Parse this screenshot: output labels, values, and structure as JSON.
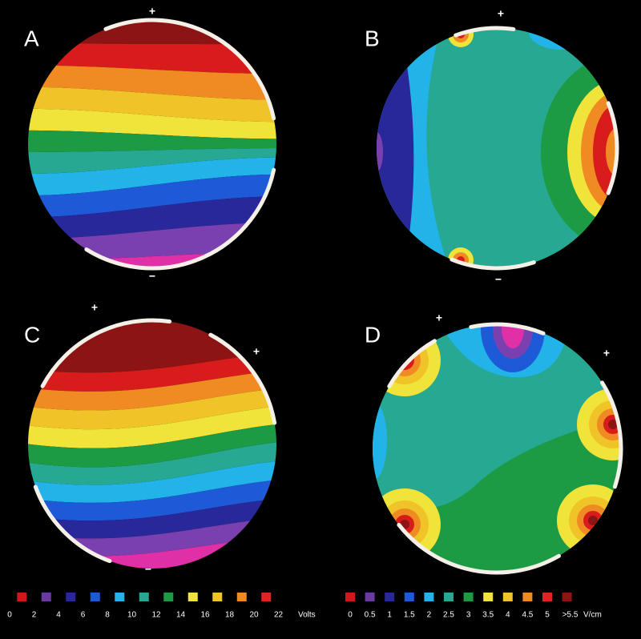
{
  "panels": [
    {
      "label": "A",
      "signs": [
        "+",
        "−"
      ]
    },
    {
      "label": "B",
      "signs": [
        "+",
        "−"
      ]
    },
    {
      "label": "C",
      "signs": [
        "+",
        "+",
        "−"
      ]
    },
    {
      "label": "D",
      "signs": [
        "+",
        "+",
        "−"
      ]
    }
  ],
  "legends": [
    {
      "ticks": [
        "0",
        "2",
        "4",
        "6",
        "8",
        "10",
        "12",
        "14",
        "16",
        "18",
        "20",
        "22"
      ],
      "unit": "Volts",
      "colors": [
        "#d01818",
        "#6a3aa0",
        "#28289a",
        "#1e5ad8",
        "#22b4e8",
        "#26a892",
        "#1c9a44",
        "#f0e43a",
        "#f0c428",
        "#f08a22",
        "#e02424",
        "#8c1414"
      ]
    },
    {
      "ticks": [
        "0",
        "0.5",
        "1",
        "1.5",
        "2",
        "2.5",
        "3",
        "3.5",
        "4",
        "4.5",
        "5",
        ">5.5"
      ],
      "unit": "V/cm",
      "colors": [
        "#d01818",
        "#6a3aa0",
        "#28289a",
        "#1e5ad8",
        "#22b4e8",
        "#26a892",
        "#1c9a44",
        "#f0e43a",
        "#f0c428",
        "#f08a22",
        "#e02424",
        "#8c1414"
      ]
    }
  ]
}
